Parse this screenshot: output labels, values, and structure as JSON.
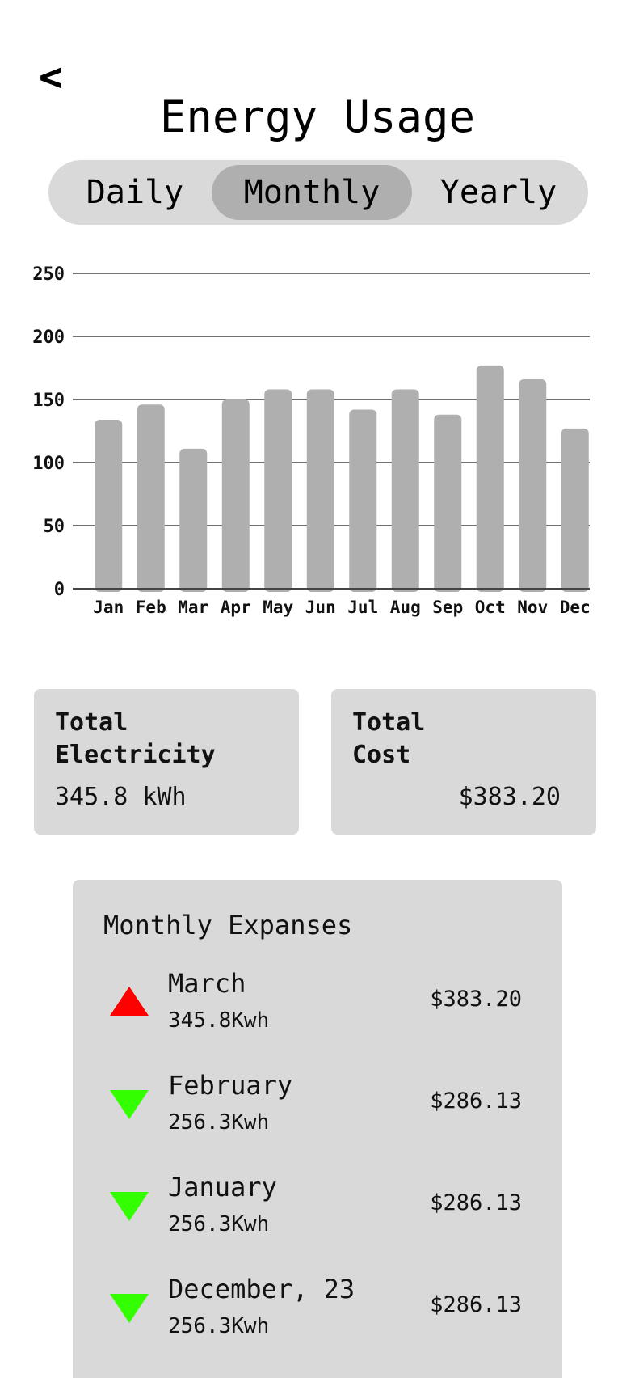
{
  "header": {
    "back_label": "<",
    "title": "Energy Usage"
  },
  "period_tabs": [
    {
      "label": "Daily",
      "active": false
    },
    {
      "label": "Monthly",
      "active": true
    },
    {
      "label": "Yearly",
      "active": false
    }
  ],
  "chart_data": {
    "type": "bar",
    "categories": [
      "Jan",
      "Feb",
      "Mar",
      "Apr",
      "May",
      "Jun",
      "Jul",
      "Aug",
      "Sep",
      "Oct",
      "Nov",
      "Dec"
    ],
    "values": [
      134,
      146,
      111,
      150,
      158,
      158,
      142,
      158,
      138,
      177,
      166,
      127
    ],
    "ylim": [
      0,
      250
    ],
    "yticks": [
      0,
      50,
      100,
      150,
      200,
      250
    ],
    "grid": true,
    "bar_color": "#afafaf",
    "title": "",
    "xlabel": "",
    "ylabel": ""
  },
  "summary": {
    "electricity": {
      "title_line1": "Total",
      "title_line2": "Electricity",
      "value": "345.8 kWh"
    },
    "cost": {
      "title_line1": "Total",
      "title_line2": "Cost",
      "value": "$383.20"
    }
  },
  "expenses": {
    "title": "Monthly Expanses",
    "items": [
      {
        "month": "March",
        "kwh": "345.8Kwh",
        "cost": "$383.20",
        "trend": "up",
        "icon": "triangle-up-icon",
        "color": "#ff0000"
      },
      {
        "month": "February",
        "kwh": "256.3Kwh",
        "cost": "$286.13",
        "trend": "down",
        "icon": "triangle-down-icon",
        "color": "#33ff00"
      },
      {
        "month": "January",
        "kwh": "256.3Kwh",
        "cost": "$286.13",
        "trend": "down",
        "icon": "triangle-down-icon",
        "color": "#33ff00"
      },
      {
        "month": "December, 23",
        "kwh": "256.3Kwh",
        "cost": "$286.13",
        "trend": "down",
        "icon": "triangle-down-icon",
        "color": "#33ff00"
      }
    ]
  }
}
